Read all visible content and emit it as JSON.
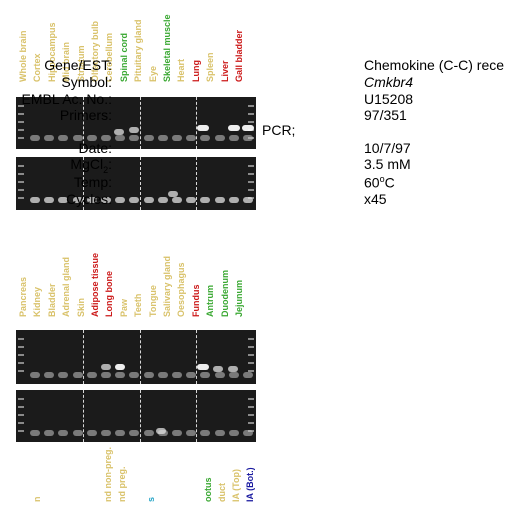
{
  "panel1": {
    "lanes": [
      {
        "label": "Whole brain",
        "color": "#d9c26a"
      },
      {
        "label": "Cortex",
        "color": "#d9c26a"
      },
      {
        "label": "Hippocampus",
        "color": "#d9c26a"
      },
      {
        "label": "Mid brain",
        "color": "#d9c26a"
      },
      {
        "label": "Striatum",
        "color": "#d9c26a"
      },
      {
        "label": "Olfactory bulb",
        "color": "#d9c26a"
      },
      {
        "label": "Cerebellum",
        "color": "#d9c26a"
      },
      {
        "label": "Spinal cord",
        "color": "#3aa832"
      },
      {
        "label": "Pituitary gland",
        "color": "#d9c26a"
      },
      {
        "label": "Eye",
        "color": "#d9c26a"
      },
      {
        "label": "Skeletal muscle",
        "color": "#3aa832"
      },
      {
        "label": "Heart",
        "color": "#d9c26a"
      },
      {
        "label": "Lung",
        "color": "#cc1a1a"
      },
      {
        "label": "Spleen",
        "color": "#d9c26a"
      },
      {
        "label": "Liver",
        "color": "#cc1a1a"
      },
      {
        "label": "Gall bladder",
        "color": "#cc1a1a"
      }
    ]
  },
  "panel2": {
    "lanes": [
      {
        "label": "Pancreas",
        "color": "#d9c26a"
      },
      {
        "label": "Kidney",
        "color": "#d9c26a"
      },
      {
        "label": "Bladder",
        "color": "#d9c26a"
      },
      {
        "label": "Adrenal gland",
        "color": "#d9c26a"
      },
      {
        "label": "Skin",
        "color": "#d9c26a"
      },
      {
        "label": "Adipose tissue",
        "color": "#cc1a1a"
      },
      {
        "label": "Long bone",
        "color": "#cc1a1a"
      },
      {
        "label": "Paw",
        "color": "#d9c26a"
      },
      {
        "label": "Teeth",
        "color": "#d9c26a"
      },
      {
        "label": "Tongue",
        "color": "#d9c26a"
      },
      {
        "label": "Salivary gland",
        "color": "#d9c26a"
      },
      {
        "label": "Oesophagus",
        "color": "#d9c26a"
      },
      {
        "label": "Fundus",
        "color": "#cc1a1a"
      },
      {
        "label": "Antrum",
        "color": "#3aa832"
      },
      {
        "label": "Duodenum",
        "color": "#3aa832"
      },
      {
        "label": "Jejunum",
        "color": "#3aa832"
      }
    ]
  },
  "panel3": {
    "lanes": [
      {
        "label": "",
        "color": "#d9c26a"
      },
      {
        "label": "n",
        "color": "#d9c26a"
      },
      {
        "label": "",
        "color": "#d9c26a"
      },
      {
        "label": "",
        "color": "#d9c26a"
      },
      {
        "label": "",
        "color": "#d9c26a"
      },
      {
        "label": "",
        "color": "#d9c26a"
      },
      {
        "label": "nd non-preg.",
        "color": "#d9c26a"
      },
      {
        "label": "nd preg.",
        "color": "#d9c26a"
      },
      {
        "label": "",
        "color": "#d9c26a"
      },
      {
        "label": "s",
        "color": "#2aa6c8"
      },
      {
        "label": "",
        "color": "#d9c26a"
      },
      {
        "label": "",
        "color": "#d9c26a"
      },
      {
        "label": "",
        "color": "#d9c26a"
      },
      {
        "label": "ootus",
        "color": "#3aa832"
      },
      {
        "label": "duct",
        "color": "#d9c26a"
      },
      {
        "label": "IA (Top)",
        "color": "#d9c26a"
      },
      {
        "label": "IA (Bot.)",
        "color": "#1a1aa0"
      }
    ]
  },
  "info": {
    "gene_label": "Gene/EST:",
    "gene_value": "Chemokine (C-C) rece",
    "symbol_label": "Symbol:",
    "symbol_value": "Cmkbr4",
    "embl_label": "EMBL Ac. No.:",
    "embl_value": "U15208",
    "primers_label": "Primers:",
    "primers_value": "97/351",
    "pcr_label": "PCR;",
    "date_label": "Date:",
    "date_value": "10/7/97",
    "mgcl_label": "MgCl",
    "mgcl_sub": "2",
    "mgcl_colon": ":",
    "mgcl_value": "3.5 mM",
    "temp_label": "Temp:",
    "temp_value_a": "60",
    "temp_value_sup": "o",
    "temp_value_b": "C",
    "cycles_label": "Cycles:",
    "cycles_value": "x45"
  }
}
